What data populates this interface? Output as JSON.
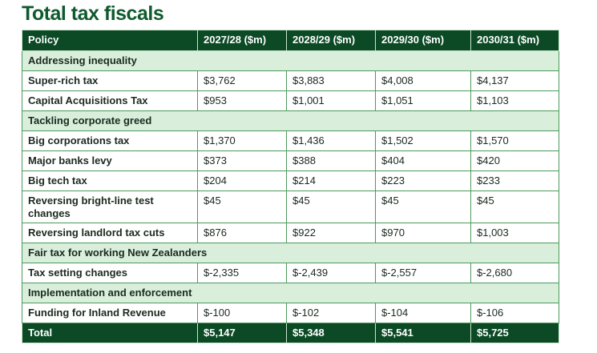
{
  "title": "Total tax fiscals",
  "table": {
    "header": [
      "Policy",
      "2027/28 ($m)",
      "2028/29 ($m)",
      "2029/30 ($m)",
      "2030/31 ($m)"
    ],
    "sections": [
      {
        "name": "Addressing inequality",
        "rows": [
          [
            "Super-rich tax",
            "$3,762",
            "$3,883",
            "$4,008",
            "$4,137"
          ],
          [
            "Capital Acquisitions Tax",
            "$953",
            "$1,001",
            "$1,051",
            "$1,103"
          ]
        ]
      },
      {
        "name": "Tackling corporate greed",
        "rows": [
          [
            "Big corporations tax",
            "$1,370",
            "$1,436",
            "$1,502",
            "$1,570"
          ],
          [
            "Major banks levy",
            "$373",
            "$388",
            "$404",
            "$420"
          ],
          [
            "Big tech tax",
            "$204",
            "$214",
            "$223",
            "$233"
          ],
          [
            "Reversing bright-line test changes",
            "$45",
            "$45",
            "$45",
            "$45"
          ],
          [
            "Reversing landlord tax cuts",
            "$876",
            "$922",
            "$970",
            "$1,003"
          ]
        ]
      },
      {
        "name": "Fair tax for working New Zealanders",
        "rows": [
          [
            "Tax setting changes",
            "$-2,335",
            "$-2,439",
            "$-2,557",
            "$-2,680"
          ]
        ]
      },
      {
        "name": "Implementation and enforcement",
        "rows": [
          [
            "Funding for Inland Revenue",
            "$-100",
            "$-102",
            "$-104",
            "$-106"
          ]
        ]
      }
    ],
    "total": [
      "Total",
      "$5,147",
      "$5,348",
      "$5,541",
      "$5,725"
    ]
  }
}
